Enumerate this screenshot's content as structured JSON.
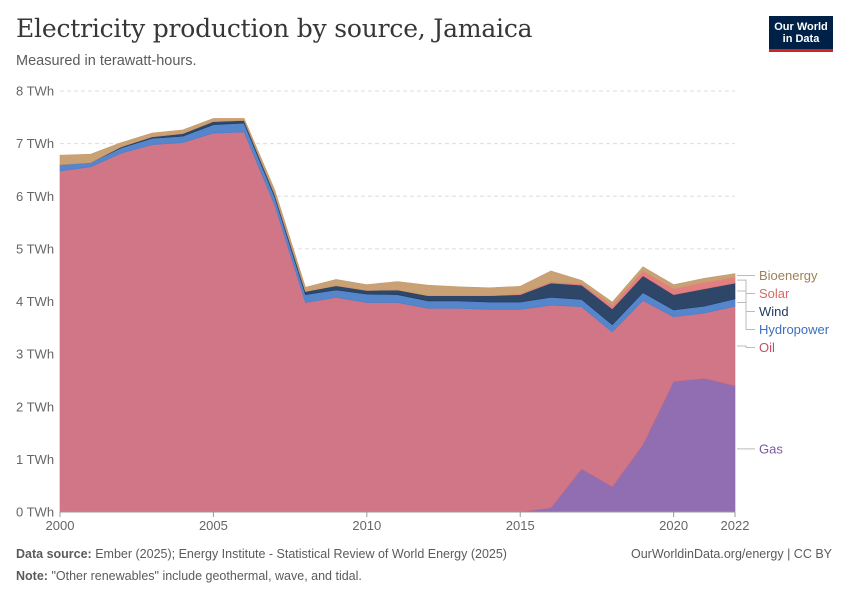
{
  "page": {
    "title": "Electricity production by source, Jamaica",
    "subtitle": "Measured in terawatt-hours.",
    "logo_line1": "Our World",
    "logo_line2": "in Data",
    "source_label": "Data source:",
    "source_text": "Ember (2025); Energy Institute - Statistical Review of World Energy (2025)",
    "note_label": "Note:",
    "note_text": "\"Other renewables\" include geothermal, wave, and tidal.",
    "credit": "OurWorldinData.org/energy | CC BY"
  },
  "chart_data": {
    "type": "area",
    "stacked": true,
    "title": "Electricity production by source, Jamaica",
    "ylabel": "TWh",
    "ylim": [
      0,
      8
    ],
    "y_ticks": [
      0,
      1,
      2,
      3,
      4,
      5,
      6,
      7,
      8
    ],
    "y_tick_labels": [
      "0 TWh",
      "1 TWh",
      "2 TWh",
      "3 TWh",
      "4 TWh",
      "5 TWh",
      "6 TWh",
      "7 TWh",
      "8 TWh"
    ],
    "xlim": [
      2000,
      2022
    ],
    "x_ticks": [
      2000,
      2005,
      2010,
      2015,
      2020,
      2022
    ],
    "x": [
      2000,
      2001,
      2002,
      2003,
      2004,
      2005,
      2006,
      2007,
      2008,
      2009,
      2010,
      2011,
      2012,
      2013,
      2014,
      2015,
      2016,
      2017,
      2018,
      2019,
      2020,
      2021,
      2022
    ],
    "series": [
      {
        "name": "Gas",
        "color": "#8a66ad",
        "values": [
          0,
          0,
          0,
          0,
          0,
          0,
          0,
          0,
          0,
          0,
          0,
          0,
          0,
          0,
          0,
          0,
          0.08,
          0.82,
          0.48,
          1.28,
          2.48,
          2.54,
          2.4
        ]
      },
      {
        "name": "Oil",
        "color": "#cf6f80",
        "values": [
          6.48,
          6.56,
          6.82,
          6.98,
          7.02,
          7.2,
          7.22,
          5.83,
          3.98,
          4.08,
          3.98,
          3.98,
          3.87,
          3.87,
          3.85,
          3.85,
          3.85,
          3.08,
          2.94,
          2.74,
          1.23,
          1.24,
          1.51
        ]
      },
      {
        "name": "Hydropower",
        "color": "#4c7fc9",
        "values": [
          0.12,
          0.08,
          0.1,
          0.12,
          0.12,
          0.16,
          0.17,
          0.15,
          0.15,
          0.14,
          0.16,
          0.15,
          0.14,
          0.14,
          0.14,
          0.14,
          0.15,
          0.14,
          0.14,
          0.15,
          0.13,
          0.13,
          0.14
        ]
      },
      {
        "name": "Wind",
        "color": "#233c60",
        "values": [
          0,
          0,
          0.02,
          0.03,
          0.05,
          0.06,
          0.05,
          0.05,
          0.06,
          0.08,
          0.07,
          0.09,
          0.1,
          0.1,
          0.12,
          0.14,
          0.27,
          0.27,
          0.3,
          0.32,
          0.29,
          0.33,
          0.3
        ]
      },
      {
        "name": "Solar",
        "color": "#e3787a",
        "values": [
          0,
          0,
          0,
          0,
          0,
          0,
          0,
          0,
          0,
          0,
          0,
          0,
          0,
          0,
          0,
          0.01,
          0.02,
          0.02,
          0.07,
          0.09,
          0.11,
          0.12,
          0.11
        ]
      },
      {
        "name": "Bioenergy",
        "color": "#c69c6e",
        "values": [
          0.18,
          0.16,
          0.08,
          0.07,
          0.07,
          0.06,
          0.04,
          0.09,
          0.08,
          0.12,
          0.11,
          0.16,
          0.2,
          0.17,
          0.15,
          0.15,
          0.21,
          0.07,
          0.06,
          0.08,
          0.08,
          0.08,
          0.07
        ]
      }
    ],
    "legend_position": "right, at the end of each series"
  }
}
